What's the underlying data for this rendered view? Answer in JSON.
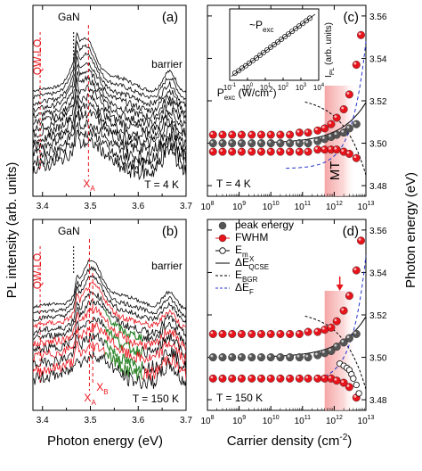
{
  "chart_data": [
    {
      "id": "a",
      "type": "line",
      "panel_label": "(a)",
      "xlabel": "",
      "ylabel": "PL intensity (arb. units)",
      "xlim": [
        3.38,
        3.7
      ],
      "xticks": [
        "3.4",
        "3.5",
        "3.6",
        "3.7"
      ],
      "annotations": {
        "gan": "GaN",
        "qwlo": "QW-LO",
        "barrier": "barrier",
        "xa": "X",
        "xa_sub": "A",
        "temp": "T = 4 K"
      },
      "x_a_line": 3.496,
      "spectra_count": 13,
      "spectra_offsets": [
        0.94,
        0.88,
        0.82,
        0.76,
        0.7,
        0.64,
        0.58,
        0.52,
        0.46,
        0.4,
        0.33,
        0.26,
        0.19
      ]
    },
    {
      "id": "b",
      "type": "line",
      "panel_label": "(b)",
      "xlabel": "Photon energy (eV)",
      "ylabel": "",
      "xlim": [
        3.38,
        3.7
      ],
      "xticks": [
        "3.4",
        "3.5",
        "3.6",
        "3.7"
      ],
      "annotations": {
        "gan": "GaN",
        "qwlo": "QW-LO",
        "barrier": "barrier",
        "xa": "X",
        "xa_sub": "A",
        "xb": "X",
        "xb_sub": "B",
        "temp": "T = 150 K"
      },
      "x_a_line": 3.498,
      "x_b_line": 3.505,
      "spectra_count": 12,
      "spectra_offsets": [
        0.92,
        0.86,
        0.8,
        0.74,
        0.68,
        0.62,
        0.56,
        0.5,
        0.44,
        0.37,
        0.3,
        0.23
      ],
      "highlight_colors": {
        "red": "#e8141c",
        "green": "#2e8b2e"
      }
    },
    {
      "id": "c",
      "type": "scatter",
      "panel_label": "(c)",
      "xlabel": "",
      "ylabel": "Photon energy (eV)",
      "xscale": "log",
      "xlim": [
        100000000.0,
        10000000000000.0
      ],
      "ylim": [
        3.475,
        3.565
      ],
      "xticks": [
        "10",
        "10",
        "10",
        "10",
        "10",
        "10"
      ],
      "xtick_exp": [
        "8",
        "9",
        "10",
        "11",
        "12",
        "13"
      ],
      "yticks": [
        "3.48",
        "3.50",
        "3.52",
        "3.54",
        "3.56"
      ],
      "mt_label": "MT",
      "mt_band": [
        500000000000.0,
        2000000000000.0
      ],
      "temp": "T = 4 K",
      "pexc_label": "P",
      "pexc_sub": "exc",
      "pexc_unit": " (W/cm",
      "pexc_unit_sup": "2",
      "pexc_unit_end": ")",
      "series": [
        {
          "name": "peak energy",
          "color": "#555555",
          "x": [
            150000000.0,
            300000000.0,
            600000000.0,
            1200000000.0,
            2500000000.0,
            5000000000.0,
            10000000000.0,
            20000000000.0,
            40000000000.0,
            80000000000.0,
            150000000000.0,
            300000000000.0,
            500000000000.0,
            800000000000.0,
            1200000000000.0,
            2000000000000.0,
            3000000000000.0,
            5000000000000.0
          ],
          "y": [
            3.5,
            3.5,
            3.5,
            3.5,
            3.5,
            3.5,
            3.5,
            3.5,
            3.5,
            3.5,
            3.5,
            3.501,
            3.502,
            3.503,
            3.504,
            3.505,
            3.507,
            3.509
          ]
        },
        {
          "name": "FWHM upper",
          "color": "#e8141c",
          "x": [
            150000000.0,
            300000000.0,
            600000000.0,
            1200000000.0,
            2500000000.0,
            5000000000.0,
            10000000000.0,
            20000000000.0,
            40000000000.0,
            80000000000.0,
            150000000000.0,
            300000000000.0,
            500000000000.0,
            800000000000.0,
            1200000000000.0,
            2000000000000.0,
            3000000000000.0,
            5000000000000.0,
            7000000000000.0
          ],
          "y": [
            3.504,
            3.504,
            3.504,
            3.504,
            3.504,
            3.504,
            3.504,
            3.504,
            3.504,
            3.505,
            3.505,
            3.506,
            3.507,
            3.509,
            3.512,
            3.516,
            3.523,
            3.537,
            3.551
          ]
        },
        {
          "name": "FWHM lower",
          "color": "#e8141c",
          "x": [
            150000000.0,
            300000000.0,
            600000000.0,
            1200000000.0,
            2500000000.0,
            5000000000.0,
            10000000000.0,
            20000000000.0,
            40000000000.0,
            80000000000.0,
            150000000000.0,
            300000000000.0,
            500000000000.0,
            800000000000.0,
            1200000000000.0,
            2000000000000.0,
            3000000000000.0,
            5000000000000.0
          ],
          "y": [
            3.496,
            3.496,
            3.496,
            3.496,
            3.496,
            3.496,
            3.496,
            3.496,
            3.496,
            3.496,
            3.496,
            3.497,
            3.497,
            3.497,
            3.497,
            3.496,
            3.495,
            3.493
          ]
        }
      ],
      "inset": {
        "label": "~P",
        "label_sub": "exc",
        "ylabel": "I",
        "ylabel_sub": "PL",
        "ylabel_end": " (arb. units)",
        "xticks": [
          "10",
          "10",
          "10",
          "10",
          "10",
          "10"
        ],
        "xtick_exp": [
          "-1",
          "0",
          "1",
          "2",
          "3",
          "4"
        ],
        "xlim_log": [
          -1,
          4
        ],
        "points_log": [
          [
            -0.7,
            -0.65
          ],
          [
            -0.5,
            -0.48
          ],
          [
            -0.3,
            -0.28
          ],
          [
            -0.1,
            -0.1
          ],
          [
            0.1,
            0.1
          ],
          [
            0.3,
            0.3
          ],
          [
            0.5,
            0.48
          ],
          [
            0.7,
            0.7
          ],
          [
            0.9,
            0.9
          ],
          [
            1.1,
            1.1
          ],
          [
            1.3,
            1.3
          ],
          [
            1.5,
            1.5
          ],
          [
            1.7,
            1.7
          ],
          [
            1.9,
            1.9
          ],
          [
            2.1,
            2.1
          ],
          [
            2.3,
            2.3
          ],
          [
            2.5,
            2.5
          ],
          [
            2.7,
            2.7
          ],
          [
            2.9,
            2.9
          ],
          [
            3.1,
            3.1
          ],
          [
            3.3,
            3.3
          ],
          [
            3.5,
            3.5
          ]
        ]
      }
    },
    {
      "id": "d",
      "type": "scatter",
      "panel_label": "(d)",
      "xlabel": "Carrier density (cm",
      "xlabel_sup": "-2",
      "xlabel_end": ")",
      "ylabel": "Photon energy (eV)",
      "xscale": "log",
      "xlim": [
        100000000.0,
        10000000000000.0
      ],
      "ylim": [
        3.475,
        3.565
      ],
      "xticks": [
        "10",
        "10",
        "10",
        "10",
        "10",
        "10"
      ],
      "xtick_exp": [
        "8",
        "9",
        "10",
        "11",
        "12",
        "13"
      ],
      "yticks": [
        "3.48",
        "3.50",
        "3.52",
        "3.54",
        "3.56"
      ],
      "temp": "T = 150 K",
      "mt_band": [
        500000000000.0,
        2000000000000.0
      ],
      "legend": [
        {
          "text": "peak energy",
          "symbol": "dot-grey"
        },
        {
          "text": "FWHM",
          "symbol": "dot-red"
        },
        {
          "text": "E",
          "sub": "m",
          "symbol": "open-circle"
        },
        {
          "text": "ΔE",
          "sup": "X",
          "sub": "QCSE",
          "symbol": "solid"
        },
        {
          "text": "E",
          "sub": "BGR",
          "symbol": "dashed"
        },
        {
          "text": "ΔE",
          "sub": "F",
          "symbol": "blue-dashed"
        }
      ],
      "series": [
        {
          "name": "peak energy",
          "color": "#555555",
          "x": [
            150000000.0,
            300000000.0,
            600000000.0,
            1200000000.0,
            2500000000.0,
            5000000000.0,
            10000000000.0,
            20000000000.0,
            40000000000.0,
            80000000000.0,
            150000000000.0,
            300000000000.0,
            500000000000.0,
            800000000000.0,
            1200000000000.0,
            2000000000000.0,
            3000000000000.0,
            5000000000000.0
          ],
          "y": [
            3.5,
            3.5,
            3.5,
            3.5,
            3.5,
            3.5,
            3.5,
            3.5,
            3.5,
            3.5,
            3.5,
            3.501,
            3.502,
            3.503,
            3.505,
            3.507,
            3.509,
            3.511
          ]
        },
        {
          "name": "FWHM upper",
          "color": "#e8141c",
          "x": [
            150000000.0,
            300000000.0,
            600000000.0,
            1200000000.0,
            2500000000.0,
            5000000000.0,
            10000000000.0,
            20000000000.0,
            40000000000.0,
            80000000000.0,
            150000000000.0,
            300000000000.0,
            500000000000.0,
            800000000000.0,
            1200000000000.0,
            2000000000000.0,
            3000000000000.0,
            5000000000000.0,
            7000000000000.0
          ],
          "y": [
            3.511,
            3.511,
            3.511,
            3.511,
            3.511,
            3.511,
            3.511,
            3.511,
            3.511,
            3.511,
            3.512,
            3.512,
            3.513,
            3.514,
            3.517,
            3.522,
            3.529,
            3.541,
            3.555
          ]
        },
        {
          "name": "FWHM lower",
          "color": "#e8141c",
          "x": [
            150000000.0,
            300000000.0,
            600000000.0,
            1200000000.0,
            2500000000.0,
            5000000000.0,
            10000000000.0,
            20000000000.0,
            40000000000.0,
            80000000000.0,
            150000000000.0,
            300000000000.0,
            500000000000.0,
            800000000000.0,
            1200000000000.0,
            2000000000000.0,
            3000000000000.0,
            5000000000000.0
          ],
          "y": [
            3.49,
            3.49,
            3.49,
            3.49,
            3.49,
            3.49,
            3.49,
            3.49,
            3.49,
            3.49,
            3.49,
            3.49,
            3.49,
            3.49,
            3.489,
            3.488,
            3.486,
            3.481
          ]
        },
        {
          "name": "E m",
          "color": "#000000",
          "x": [
            1500000000000.0,
            2000000000000.0,
            2500000000000.0,
            3000000000000.0,
            3500000000000.0,
            4000000000000.0,
            5000000000000.0,
            6000000000000.0
          ],
          "y": [
            3.497,
            3.496,
            3.495,
            3.494,
            3.492,
            3.49,
            3.487,
            3.483
          ]
        }
      ]
    }
  ]
}
